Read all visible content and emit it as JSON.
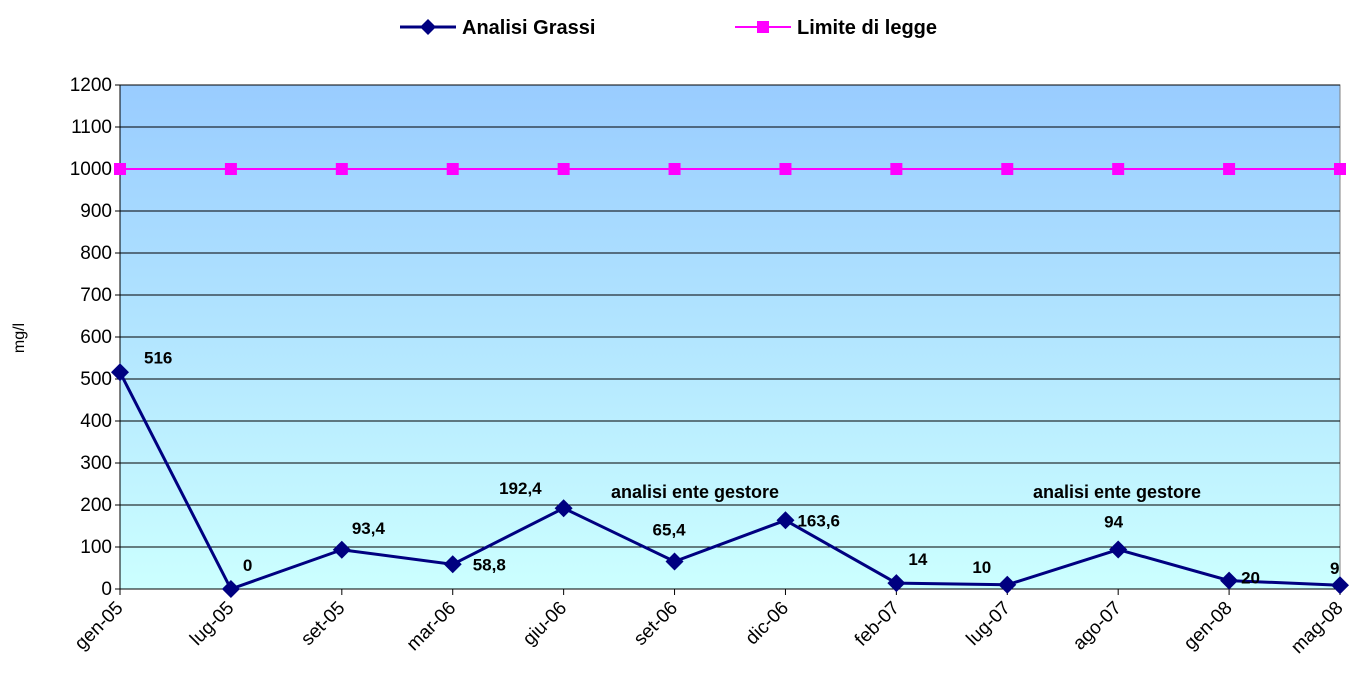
{
  "chart_data": {
    "type": "line",
    "categories": [
      "gen-05",
      "lug-05",
      "set-05",
      "mar-06",
      "giu-06",
      "set-06",
      "dic-06",
      "feb-07",
      "lug-07",
      "ago-07",
      "gen-08",
      "mag-08"
    ],
    "series": [
      {
        "name": "Analisi Grassi",
        "values": [
          516,
          0,
          93.4,
          58.8,
          192.4,
          65.4,
          163.6,
          14,
          10,
          94,
          20,
          9
        ],
        "labels": [
          "516",
          "0",
          "93,4",
          "58,8",
          "192,4",
          "65,4",
          "163,6",
          "14",
          "10",
          "94",
          "20",
          "9"
        ],
        "color": "#000080",
        "marker": "diamond"
      },
      {
        "name": "Limite di legge",
        "values": [
          1000,
          1000,
          1000,
          1000,
          1000,
          1000,
          1000,
          1000,
          1000,
          1000,
          1000,
          1000
        ],
        "color": "#ff00ff",
        "marker": "square"
      }
    ],
    "ylabel": "mg/l",
    "xlabel": "",
    "ylim": [
      0,
      1200
    ],
    "yticks": [
      0,
      100,
      200,
      300,
      400,
      500,
      600,
      700,
      800,
      900,
      1000,
      1100,
      1200
    ],
    "grid": true,
    "legend_position": "top",
    "annotations": [
      {
        "text": "analisi ente gestore",
        "near_category": "set-06"
      },
      {
        "text": "analisi ente gestore",
        "near_category": "ago-07"
      }
    ],
    "background_gradient": [
      "#99ccff",
      "#ccffff"
    ]
  }
}
